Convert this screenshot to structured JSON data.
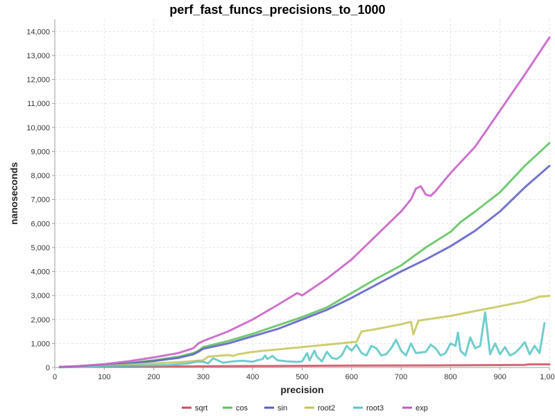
{
  "chart_data": {
    "type": "line",
    "title": "perf_fast_funcs_precisions_to_1000",
    "xlabel": "precision",
    "ylabel": "nanoseconds",
    "xlim": [
      0,
      1000
    ],
    "ylim": [
      0,
      14500
    ],
    "x_ticks": [
      0,
      100,
      200,
      300,
      400,
      500,
      600,
      700,
      800,
      900,
      1000
    ],
    "x_tick_labels": [
      "0",
      "100",
      "200",
      "300",
      "400",
      "500",
      "600",
      "700",
      "800",
      "900",
      "1,000"
    ],
    "y_ticks": [
      0,
      1000,
      2000,
      3000,
      4000,
      5000,
      6000,
      7000,
      8000,
      9000,
      10000,
      11000,
      12000,
      13000,
      14000
    ],
    "y_tick_labels": [
      "0",
      "1,000",
      "2,000",
      "3,000",
      "4,000",
      "5,000",
      "6,000",
      "7,000",
      "8,000",
      "9,000",
      "10,000",
      "11,000",
      "12,000",
      "13,000",
      "14,000"
    ],
    "grid": true,
    "legend_position": "bottom",
    "series": [
      {
        "name": "sqrt",
        "color": "#cc4b5c",
        "points": [
          [
            10,
            20
          ],
          [
            100,
            30
          ],
          [
            200,
            40
          ],
          [
            300,
            50
          ],
          [
            400,
            60
          ],
          [
            500,
            70
          ],
          [
            600,
            80
          ],
          [
            700,
            85
          ],
          [
            800,
            90
          ],
          [
            900,
            100
          ],
          [
            950,
            110
          ],
          [
            960,
            130
          ],
          [
            1000,
            130
          ]
        ]
      },
      {
        "name": "cos",
        "color": "#59c159",
        "points": [
          [
            10,
            20
          ],
          [
            50,
            50
          ],
          [
            100,
            100
          ],
          [
            150,
            180
          ],
          [
            200,
            300
          ],
          [
            250,
            450
          ],
          [
            280,
            600
          ],
          [
            290,
            700
          ],
          [
            300,
            850
          ],
          [
            350,
            1100
          ],
          [
            400,
            1400
          ],
          [
            450,
            1750
          ],
          [
            500,
            2100
          ],
          [
            550,
            2500
          ],
          [
            600,
            3100
          ],
          [
            650,
            3700
          ],
          [
            700,
            4250
          ],
          [
            750,
            5000
          ],
          [
            800,
            5650
          ],
          [
            820,
            6050
          ],
          [
            850,
            6500
          ],
          [
            900,
            7300
          ],
          [
            950,
            8400
          ],
          [
            1000,
            9350
          ]
        ]
      },
      {
        "name": "sin",
        "color": "#5a5ac4",
        "points": [
          [
            10,
            20
          ],
          [
            50,
            40
          ],
          [
            100,
            90
          ],
          [
            150,
            160
          ],
          [
            200,
            270
          ],
          [
            250,
            400
          ],
          [
            280,
            550
          ],
          [
            290,
            650
          ],
          [
            300,
            780
          ],
          [
            350,
            1000
          ],
          [
            400,
            1300
          ],
          [
            450,
            1600
          ],
          [
            500,
            2000
          ],
          [
            550,
            2400
          ],
          [
            600,
            2900
          ],
          [
            650,
            3450
          ],
          [
            700,
            4000
          ],
          [
            750,
            4500
          ],
          [
            800,
            5050
          ],
          [
            850,
            5700
          ],
          [
            900,
            6500
          ],
          [
            950,
            7500
          ],
          [
            1000,
            8400
          ]
        ]
      },
      {
        "name": "root2",
        "color": "#c4c458",
        "points": [
          [
            10,
            10
          ],
          [
            100,
            60
          ],
          [
            150,
            120
          ],
          [
            200,
            170
          ],
          [
            250,
            220
          ],
          [
            280,
            270
          ],
          [
            300,
            300
          ],
          [
            310,
            450
          ],
          [
            350,
            520
          ],
          [
            360,
            480
          ],
          [
            370,
            550
          ],
          [
            400,
            650
          ],
          [
            450,
            750
          ],
          [
            500,
            850
          ],
          [
            550,
            950
          ],
          [
            600,
            1050
          ],
          [
            610,
            1070
          ],
          [
            620,
            1500
          ],
          [
            650,
            1600
          ],
          [
            700,
            1800
          ],
          [
            720,
            1900
          ],
          [
            725,
            1380
          ],
          [
            735,
            1950
          ],
          [
            800,
            2150
          ],
          [
            850,
            2350
          ],
          [
            900,
            2550
          ],
          [
            950,
            2750
          ],
          [
            980,
            2950
          ],
          [
            1000,
            2980
          ]
        ]
      },
      {
        "name": "root3",
        "color": "#58c4c4",
        "points": [
          [
            10,
            10
          ],
          [
            50,
            25
          ],
          [
            100,
            50
          ],
          [
            150,
            70
          ],
          [
            200,
            90
          ],
          [
            230,
            100
          ],
          [
            270,
            170
          ],
          [
            290,
            250
          ],
          [
            300,
            230
          ],
          [
            310,
            170
          ],
          [
            320,
            380
          ],
          [
            340,
            200
          ],
          [
            360,
            250
          ],
          [
            380,
            280
          ],
          [
            400,
            240
          ],
          [
            410,
            300
          ],
          [
            420,
            350
          ],
          [
            425,
            500
          ],
          [
            430,
            350
          ],
          [
            440,
            480
          ],
          [
            450,
            300
          ],
          [
            470,
            250
          ],
          [
            490,
            230
          ],
          [
            500,
            250
          ],
          [
            510,
            600
          ],
          [
            515,
            300
          ],
          [
            525,
            700
          ],
          [
            530,
            450
          ],
          [
            540,
            250
          ],
          [
            550,
            650
          ],
          [
            560,
            400
          ],
          [
            570,
            350
          ],
          [
            580,
            500
          ],
          [
            590,
            900
          ],
          [
            600,
            700
          ],
          [
            610,
            950
          ],
          [
            620,
            600
          ],
          [
            630,
            500
          ],
          [
            640,
            900
          ],
          [
            650,
            800
          ],
          [
            660,
            500
          ],
          [
            670,
            550
          ],
          [
            680,
            800
          ],
          [
            690,
            1150
          ],
          [
            700,
            700
          ],
          [
            710,
            500
          ],
          [
            720,
            1000
          ],
          [
            730,
            600
          ],
          [
            750,
            650
          ],
          [
            760,
            950
          ],
          [
            770,
            800
          ],
          [
            780,
            500
          ],
          [
            790,
            600
          ],
          [
            800,
            1000
          ],
          [
            810,
            900
          ],
          [
            815,
            1450
          ],
          [
            820,
            700
          ],
          [
            830,
            500
          ],
          [
            840,
            1250
          ],
          [
            850,
            800
          ],
          [
            860,
            900
          ],
          [
            870,
            2300
          ],
          [
            880,
            550
          ],
          [
            890,
            1000
          ],
          [
            900,
            550
          ],
          [
            910,
            850
          ],
          [
            920,
            500
          ],
          [
            930,
            600
          ],
          [
            940,
            800
          ],
          [
            950,
            1050
          ],
          [
            960,
            550
          ],
          [
            970,
            900
          ],
          [
            980,
            600
          ],
          [
            990,
            1850
          ]
        ]
      },
      {
        "name": "exp",
        "color": "#c458c4",
        "points": [
          [
            10,
            20
          ],
          [
            50,
            60
          ],
          [
            100,
            140
          ],
          [
            150,
            260
          ],
          [
            200,
            420
          ],
          [
            250,
            600
          ],
          [
            280,
            800
          ],
          [
            290,
            1000
          ],
          [
            300,
            1100
          ],
          [
            350,
            1500
          ],
          [
            400,
            2000
          ],
          [
            450,
            2600
          ],
          [
            490,
            3100
          ],
          [
            500,
            3000
          ],
          [
            550,
            3700
          ],
          [
            600,
            4500
          ],
          [
            650,
            5500
          ],
          [
            700,
            6500
          ],
          [
            720,
            7000
          ],
          [
            730,
            7450
          ],
          [
            740,
            7550
          ],
          [
            750,
            7200
          ],
          [
            760,
            7150
          ],
          [
            770,
            7350
          ],
          [
            800,
            8100
          ],
          [
            850,
            9200
          ],
          [
            900,
            10700
          ],
          [
            950,
            12200
          ],
          [
            1000,
            13750
          ]
        ]
      }
    ]
  }
}
